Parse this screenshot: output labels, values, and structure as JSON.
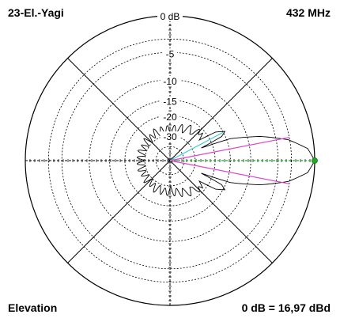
{
  "header": {
    "antenna": "23-El.-Yagi",
    "frequency": "432 MHz"
  },
  "footer": {
    "plane": "Elevation",
    "reference": "0 dB = 16,97 dBd"
  },
  "colors": {
    "pattern": "#000000",
    "grid": "#000000",
    "marker_green": "#22aa22",
    "marker_magenta": "#dd44cc",
    "marker_cyan": "#44cccc"
  },
  "chart_data": {
    "type": "polar",
    "plane": "Elevation",
    "radial_scale": "dB",
    "radial_labels": [
      "0 dB",
      "-5",
      "-10",
      "-15",
      "-20",
      "-30"
    ],
    "radial_db_values": [
      0,
      -5,
      -10,
      -15,
      -20,
      -30
    ],
    "angular_spokes_deg": [
      0,
      45,
      90,
      135,
      180,
      225,
      270,
      315
    ],
    "grid": true,
    "main_lobe": {
      "direction_deg": 0,
      "peak_db": 0,
      "half_power_db": -3,
      "half_power_angles_deg": [
        -11,
        11
      ]
    },
    "markers": [
      {
        "name": "max",
        "color": "green",
        "angle_deg": 0,
        "db": 0
      },
      {
        "name": "-3 dB",
        "color": "magenta",
        "angles_deg": [
          -11,
          11
        ]
      },
      {
        "name": "sidelobe",
        "color": "cyan",
        "angle_deg": 28,
        "db": -15
      }
    ],
    "pattern_db": [
      {
        "angle": 0,
        "db": 0
      },
      {
        "angle": 5,
        "db": -0.8
      },
      {
        "angle": 10,
        "db": -3.2
      },
      {
        "angle": 15,
        "db": -7.5
      },
      {
        "angle": 20,
        "db": -14
      },
      {
        "angle": 22,
        "db": -25
      },
      {
        "angle": 25,
        "db": -16
      },
      {
        "angle": 28,
        "db": -14.5
      },
      {
        "angle": 32,
        "db": -17
      },
      {
        "angle": 35,
        "db": -24
      },
      {
        "angle": 40,
        "db": -21
      },
      {
        "angle": 45,
        "db": -20
      },
      {
        "angle": 50,
        "db": -26
      },
      {
        "angle": 55,
        "db": -22
      },
      {
        "angle": 60,
        "db": -24
      },
      {
        "angle": 70,
        "db": -25
      },
      {
        "angle": 80,
        "db": -26
      },
      {
        "angle": 90,
        "db": -27
      },
      {
        "angle": 100,
        "db": -26
      },
      {
        "angle": 110,
        "db": -27
      },
      {
        "angle": 120,
        "db": -26
      },
      {
        "angle": 130,
        "db": -28
      },
      {
        "angle": 140,
        "db": -27
      },
      {
        "angle": 150,
        "db": -28
      },
      {
        "angle": 160,
        "db": -27
      },
      {
        "angle": 170,
        "db": -28
      },
      {
        "angle": 180,
        "db": -27
      }
    ]
  }
}
